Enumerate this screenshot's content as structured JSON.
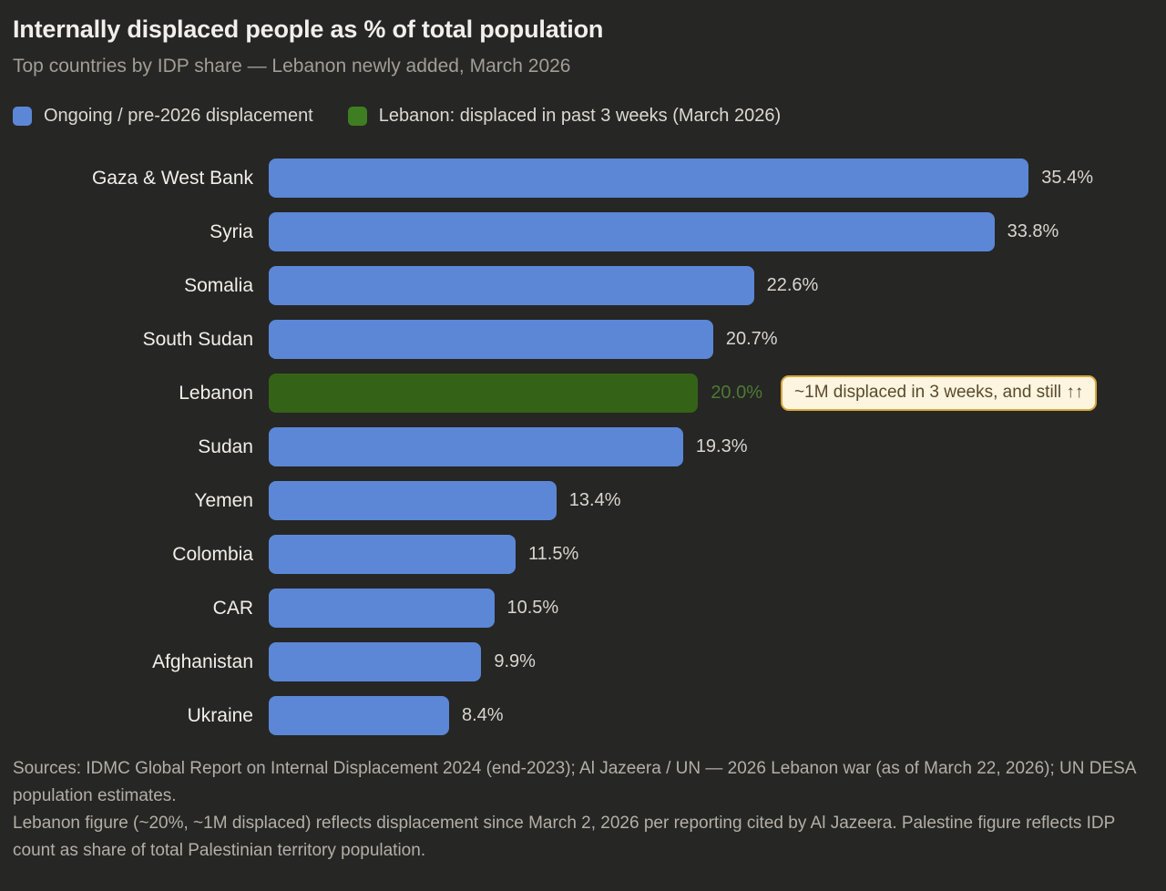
{
  "page": {
    "background": "#262624"
  },
  "header": {
    "title": "Internally displaced people as % of total population",
    "subtitle": "Top countries by IDP share — Lebanon newly added, March 2026"
  },
  "legend": {
    "items": [
      {
        "label": "Ongoing / pre-2026 displacement",
        "series": "ongoing"
      },
      {
        "label": "Lebanon: displaced in past 3 weeks (March 2026)",
        "series": "lebanon"
      }
    ]
  },
  "colors": {
    "ongoing": "#5b87d6",
    "lebanon_bar": "#346317",
    "lebanon_legend": "#3e7d22",
    "lebanon_value_text": "#4d7a35",
    "value_text": "#d9d6cf",
    "annotation_bg": "#fdf5df",
    "annotation_border": "#d6a73e",
    "annotation_text": "#5a4a2f",
    "background": "#262624"
  },
  "chart_data": {
    "type": "bar",
    "orientation": "horizontal",
    "title": "Internally displaced people as % of total population",
    "subtitle": "Top countries by IDP share — Lebanon newly added, March 2026",
    "xlabel": "",
    "ylabel": "",
    "xlim": [
      0,
      41.2
    ],
    "grid": false,
    "legend_position": "top-left",
    "categories": [
      "Gaza & West Bank",
      "Syria",
      "Somalia",
      "South Sudan",
      "Lebanon",
      "Sudan",
      "Yemen",
      "Colombia",
      "CAR",
      "Afghanistan",
      "Ukraine"
    ],
    "values": [
      35.4,
      33.8,
      22.6,
      20.7,
      20.0,
      19.3,
      13.4,
      11.5,
      10.5,
      9.9,
      8.4
    ],
    "rows": [
      {
        "label": "Gaza & West Bank",
        "value": 35.4,
        "display": "35.4%",
        "series": "ongoing"
      },
      {
        "label": "Syria",
        "value": 33.8,
        "display": "33.8%",
        "series": "ongoing"
      },
      {
        "label": "Somalia",
        "value": 22.6,
        "display": "22.6%",
        "series": "ongoing"
      },
      {
        "label": "South Sudan",
        "value": 20.7,
        "display": "20.7%",
        "series": "ongoing"
      },
      {
        "label": "Lebanon",
        "value": 20.0,
        "display": "20.0%",
        "series": "lebanon",
        "annotation": "~1M displaced in 3 weeks, and still ↑↑"
      },
      {
        "label": "Sudan",
        "value": 19.3,
        "display": "19.3%",
        "series": "ongoing"
      },
      {
        "label": "Yemen",
        "value": 13.4,
        "display": "13.4%",
        "series": "ongoing"
      },
      {
        "label": "Colombia",
        "value": 11.5,
        "display": "11.5%",
        "series": "ongoing"
      },
      {
        "label": "CAR",
        "value": 10.5,
        "display": "10.5%",
        "series": "ongoing"
      },
      {
        "label": "Afghanistan",
        "value": 9.9,
        "display": "9.9%",
        "series": "ongoing"
      },
      {
        "label": "Ukraine",
        "value": 8.4,
        "display": "8.4%",
        "series": "ongoing"
      }
    ]
  },
  "footer": {
    "sources_line": "Sources: IDMC Global Report on Internal Displacement 2024 (end-2023); Al Jazeera / UN — 2026 Lebanon war (as of March 22, 2026); UN DESA population estimates.",
    "note_line": "Lebanon figure (~20%, ~1M displaced) reflects displacement since March 2, 2026 per reporting cited by Al Jazeera. Palestine figure reflects IDP count as share of total Palestinian territory population."
  }
}
